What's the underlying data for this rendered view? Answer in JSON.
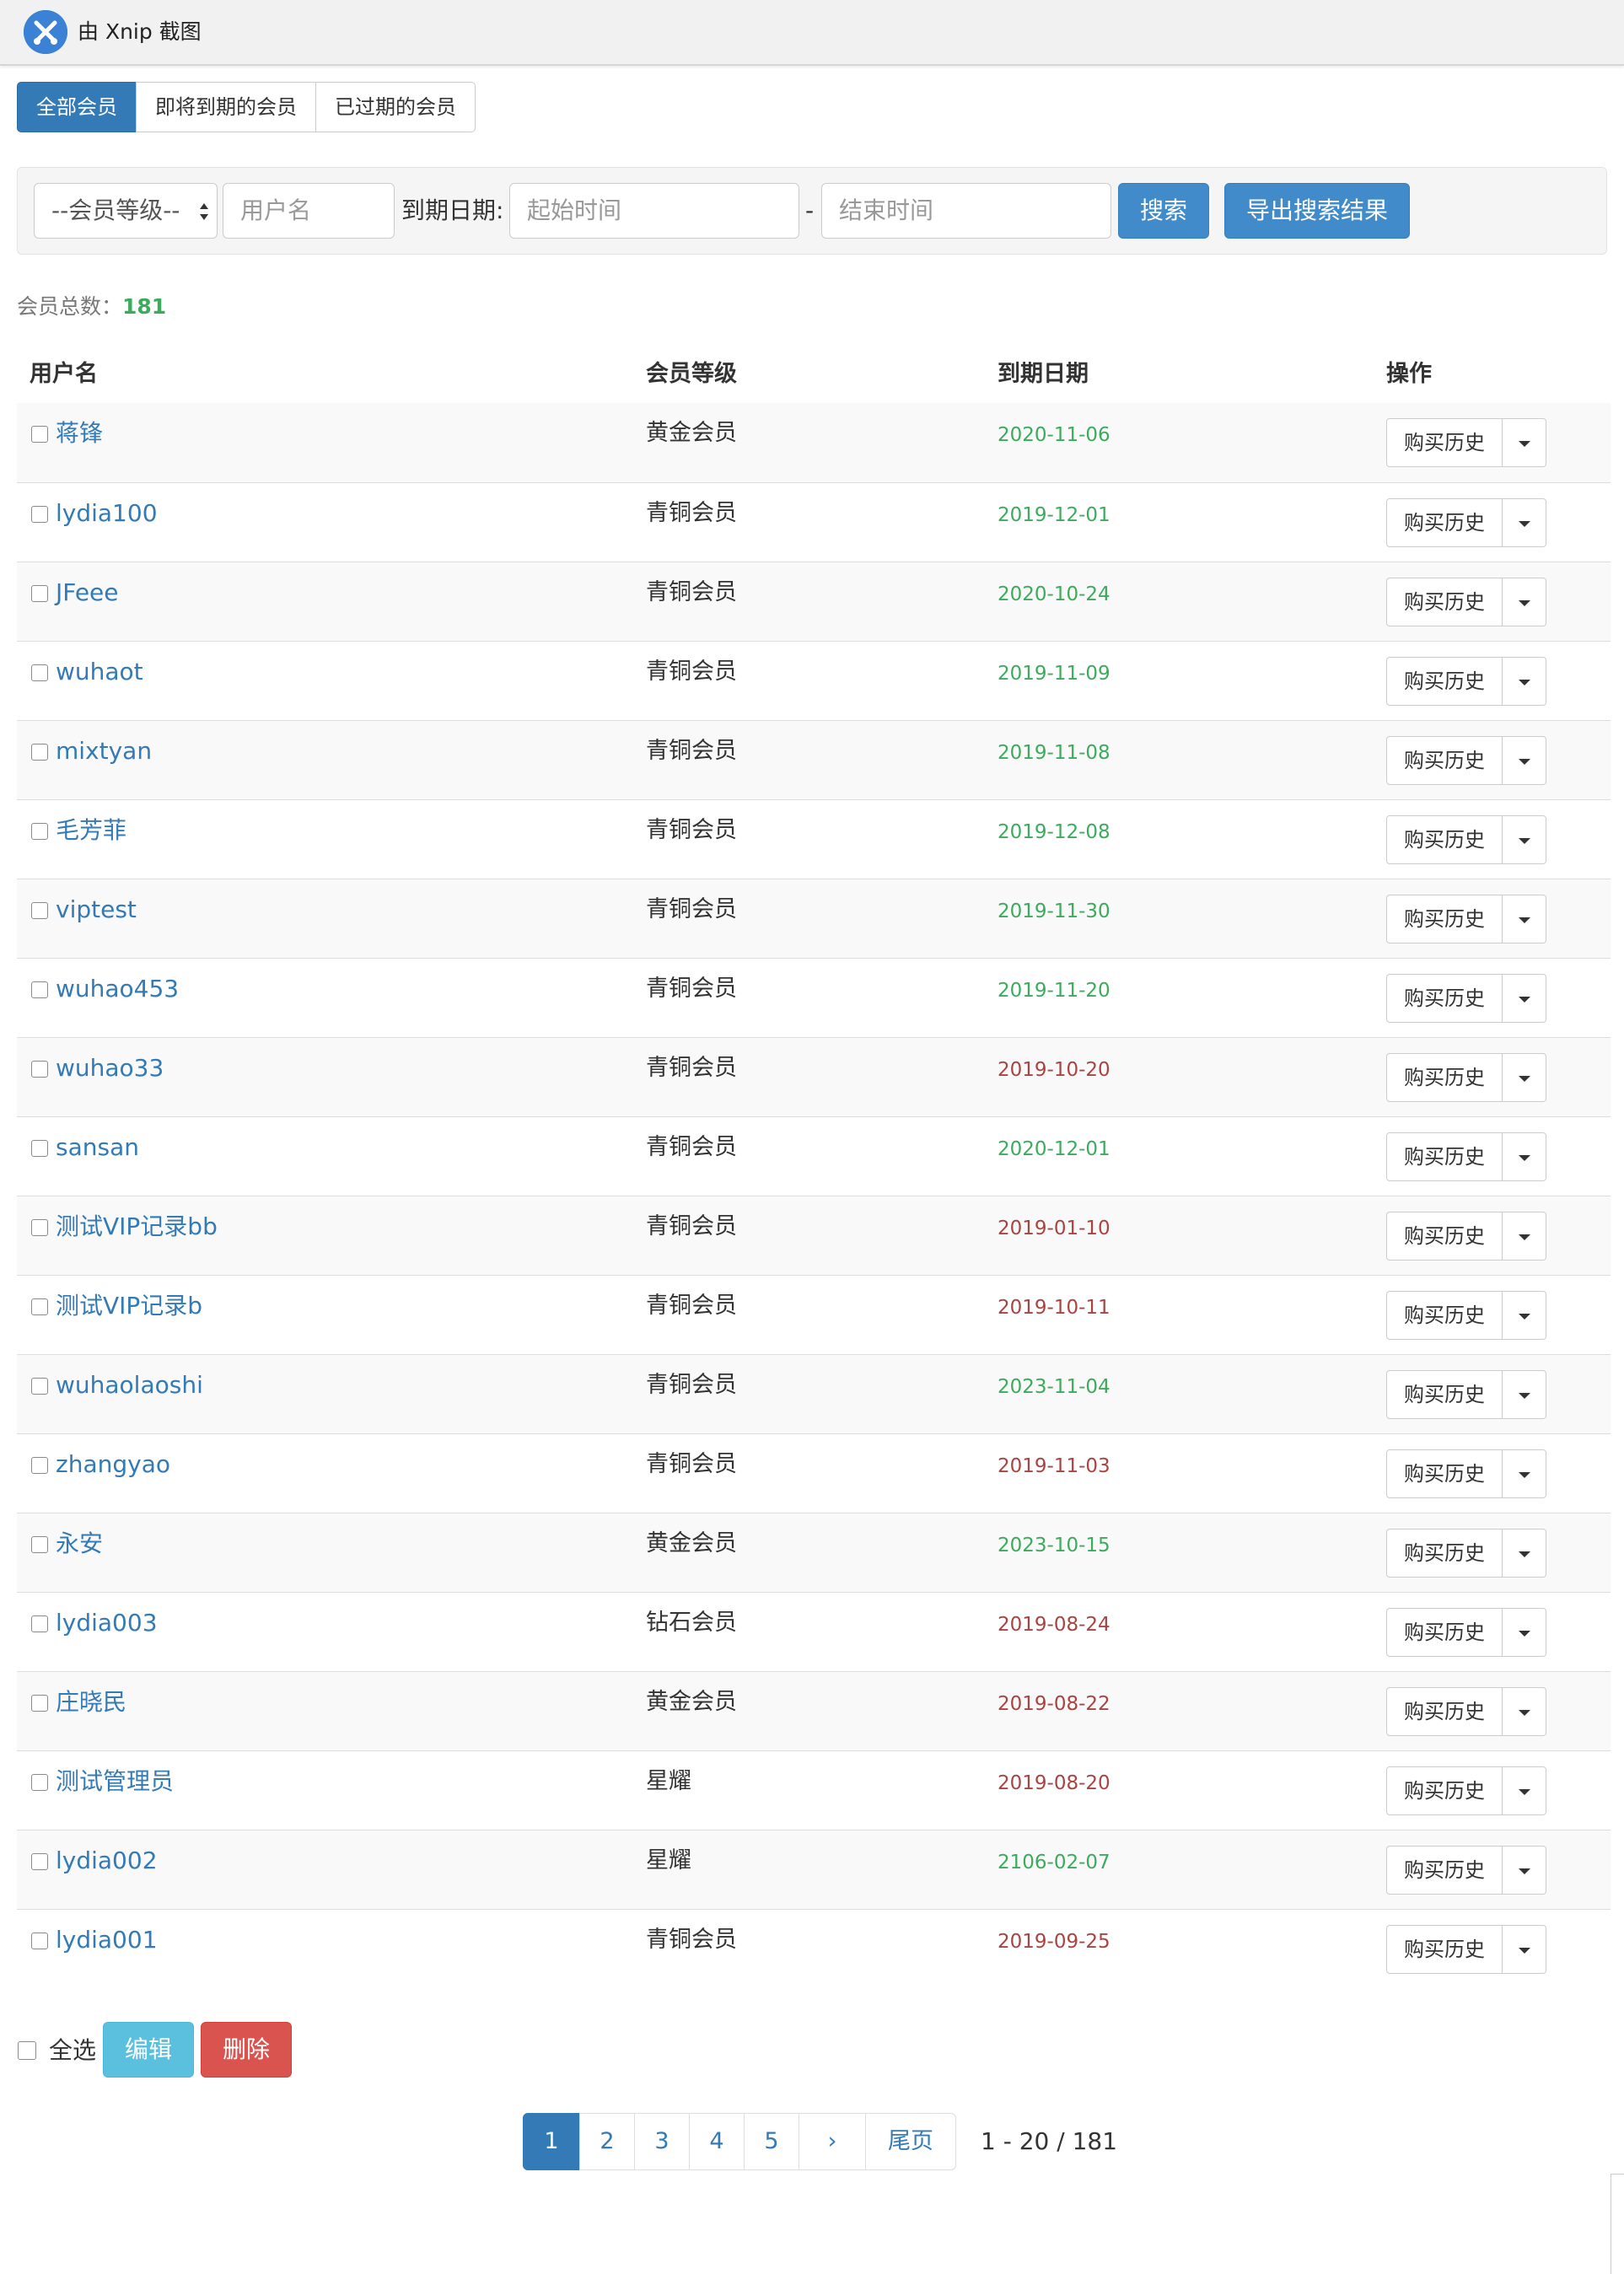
{
  "window": {
    "title": "由 Xnip 截图"
  },
  "tabs": [
    {
      "label": "全部会员",
      "active": true
    },
    {
      "label": "即将到期的会员",
      "active": false
    },
    {
      "label": "已过期的会员",
      "active": false
    }
  ],
  "filter": {
    "level_select": "--会员等级--",
    "username_placeholder": "用户名",
    "date_label": "到期日期:",
    "start_placeholder": "起始时间",
    "separator": "-",
    "end_placeholder": "结束时间",
    "search_label": "搜索",
    "export_label": "导出搜索结果"
  },
  "summary": {
    "label": "会员总数：",
    "count": "181"
  },
  "table": {
    "columns": [
      "用户名",
      "会员等级",
      "到期日期",
      "操作"
    ],
    "action_label": "购买历史",
    "rows": [
      {
        "username": "蒋锋",
        "level": "黄金会员",
        "expiry": "2020-11-06",
        "status": "ok"
      },
      {
        "username": "lydia100",
        "level": "青铜会员",
        "expiry": "2019-12-01",
        "status": "ok"
      },
      {
        "username": "JFeee",
        "level": "青铜会员",
        "expiry": "2020-10-24",
        "status": "ok"
      },
      {
        "username": "wuhaot",
        "level": "青铜会员",
        "expiry": "2019-11-09",
        "status": "ok"
      },
      {
        "username": "mixtyan",
        "level": "青铜会员",
        "expiry": "2019-11-08",
        "status": "ok"
      },
      {
        "username": "毛芳菲",
        "level": "青铜会员",
        "expiry": "2019-12-08",
        "status": "ok"
      },
      {
        "username": "viptest",
        "level": "青铜会员",
        "expiry": "2019-11-30",
        "status": "ok"
      },
      {
        "username": "wuhao453",
        "level": "青铜会员",
        "expiry": "2019-11-20",
        "status": "ok"
      },
      {
        "username": "wuhao33",
        "level": "青铜会员",
        "expiry": "2019-10-20",
        "status": "bad"
      },
      {
        "username": "sansan",
        "level": "青铜会员",
        "expiry": "2020-12-01",
        "status": "ok"
      },
      {
        "username": "测试VIP记录bb",
        "level": "青铜会员",
        "expiry": "2019-01-10",
        "status": "bad"
      },
      {
        "username": "测试VIP记录b",
        "level": "青铜会员",
        "expiry": "2019-10-11",
        "status": "bad"
      },
      {
        "username": "wuhaolaoshi",
        "level": "青铜会员",
        "expiry": "2023-11-04",
        "status": "ok"
      },
      {
        "username": "zhangyao",
        "level": "青铜会员",
        "expiry": "2019-11-03",
        "status": "bad"
      },
      {
        "username": "永安",
        "level": "黄金会员",
        "expiry": "2023-10-15",
        "status": "ok"
      },
      {
        "username": "lydia003",
        "level": "钻石会员",
        "expiry": "2019-08-24",
        "status": "bad"
      },
      {
        "username": "庄晓民",
        "level": "黄金会员",
        "expiry": "2019-08-22",
        "status": "bad"
      },
      {
        "username": "测试管理员",
        "level": "星耀",
        "expiry": "2019-08-20",
        "status": "bad"
      },
      {
        "username": "lydia002",
        "level": "星耀",
        "expiry": "2106-02-07",
        "status": "ok"
      },
      {
        "username": "lydia001",
        "level": "青铜会员",
        "expiry": "2019-09-25",
        "status": "bad"
      }
    ]
  },
  "bulk": {
    "select_all": "全选",
    "edit": "编辑",
    "delete": "删除"
  },
  "pagination": {
    "pages": [
      {
        "label": "1",
        "active": true
      },
      {
        "label": "2",
        "active": false
      },
      {
        "label": "3",
        "active": false
      },
      {
        "label": "4",
        "active": false
      },
      {
        "label": "5",
        "active": false
      },
      {
        "label": "›",
        "active": false
      },
      {
        "label": "尾页",
        "active": false
      }
    ],
    "info": "1 - 20 / 181"
  },
  "colors": {
    "primary": "#337ab7",
    "valid_date": "#3cab5c",
    "expired_date": "#a94442",
    "info_button": "#5bc0de",
    "danger_button": "#d9534f"
  }
}
